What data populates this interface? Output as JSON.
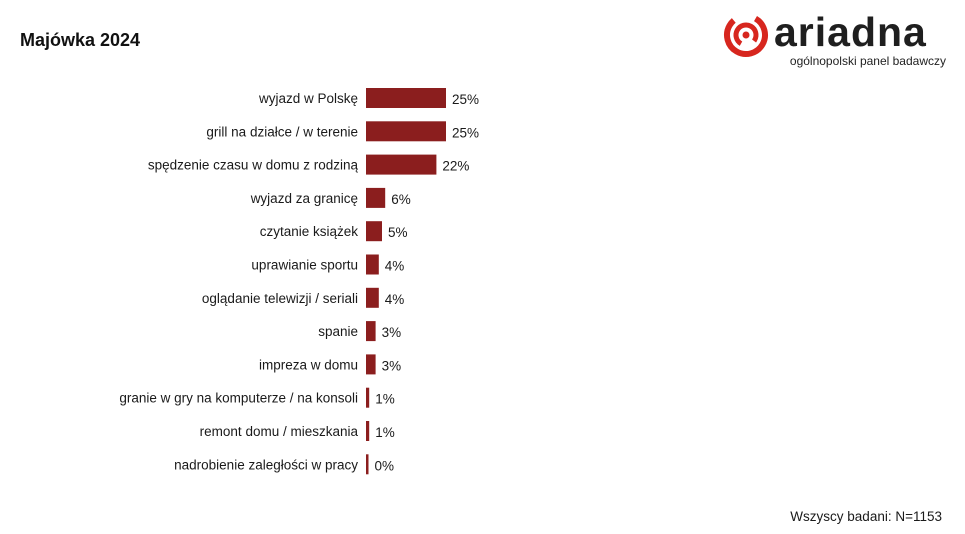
{
  "header": {
    "title": "Majówka 2024"
  },
  "logo": {
    "wordmark": "ariadna",
    "tagline": "ogólnopolski panel badawczy",
    "brand_color": "#d7261e"
  },
  "footer": {
    "note": "Wszyscy badani: N=1153"
  },
  "chart_data": {
    "type": "bar",
    "orientation": "horizontal",
    "categories": [
      "wyjazd w Polskę",
      "grill na działce / w terenie",
      "spędzenie czasu w domu z rodziną",
      "wyjazd za granicę",
      "czytanie książek",
      "uprawianie sportu",
      "oglądanie telewizji / seriali",
      "spanie",
      "impreza w domu",
      "granie w gry na komputerze / na konsoli",
      "remont domu / mieszkania",
      "nadrobienie zaległości w pracy"
    ],
    "values": [
      25,
      25,
      22,
      6,
      5,
      4,
      4,
      3,
      3,
      1,
      1,
      0
    ],
    "value_labels": [
      "25%",
      "25%",
      "22%",
      "6%",
      "5%",
      "4%",
      "4%",
      "3%",
      "3%",
      "1%",
      "1%",
      "0%"
    ],
    "unit": "%",
    "bar_color": "#8b1e1e",
    "grid": false,
    "legend": "none"
  }
}
